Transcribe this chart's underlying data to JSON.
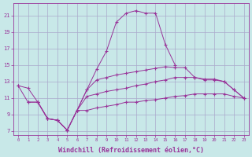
{
  "background_color": "#c8e8e8",
  "grid_color": "#aaaacc",
  "line_color": "#993399",
  "xlabel": "Windchill (Refroidissement éolien,°C)",
  "xlabel_fontsize": 6,
  "yticks": [
    7,
    9,
    11,
    13,
    15,
    17,
    19,
    21
  ],
  "xticks": [
    0,
    1,
    2,
    3,
    4,
    5,
    6,
    7,
    8,
    9,
    10,
    11,
    12,
    13,
    14,
    15,
    16,
    17,
    18,
    19,
    20,
    21,
    22,
    23
  ],
  "xlim": [
    -0.5,
    23.5
  ],
  "ylim": [
    6.5,
    22.5
  ],
  "line1_x": [
    0,
    1,
    2,
    3,
    4,
    5,
    6,
    7,
    8,
    9,
    10,
    11,
    12,
    13,
    14,
    15,
    16
  ],
  "line1_y": [
    12.5,
    12.2,
    10.5,
    8.5,
    8.3,
    7.1,
    9.5,
    12.0,
    14.5,
    16.7,
    20.2,
    21.3,
    21.6,
    21.3,
    21.3,
    17.5,
    15.0
  ],
  "line2_x": [
    1,
    2,
    3,
    4,
    5,
    6,
    7,
    8,
    9,
    10,
    11,
    12,
    13,
    14,
    15,
    16,
    17,
    18,
    19,
    20,
    21,
    22,
    23
  ],
  "line2_y": [
    10.5,
    10.5,
    8.5,
    8.3,
    7.1,
    9.5,
    12.0,
    13.2,
    13.5,
    13.8,
    14.0,
    14.2,
    14.4,
    14.6,
    14.8,
    14.7,
    14.7,
    13.5,
    13.2,
    13.2,
    13.0,
    12.0,
    11.0
  ],
  "line3_x": [
    0,
    1,
    2,
    3,
    4,
    5,
    6,
    7,
    8,
    9,
    10,
    11,
    12,
    13,
    14,
    15,
    16,
    17,
    18,
    19,
    20,
    21,
    22,
    23
  ],
  "line3_y": [
    12.5,
    10.5,
    10.5,
    8.5,
    8.3,
    7.1,
    9.5,
    11.2,
    11.5,
    11.8,
    12.0,
    12.2,
    12.5,
    12.7,
    13.0,
    13.2,
    13.5,
    13.5,
    13.5,
    13.3,
    13.3,
    13.0,
    12.0,
    11.0
  ],
  "line4_x": [
    2,
    3,
    4,
    5,
    6,
    7,
    8,
    9,
    10,
    11,
    12,
    13,
    14,
    15,
    16,
    17,
    18,
    19,
    20,
    21,
    22,
    23
  ],
  "line4_y": [
    10.5,
    8.5,
    8.3,
    7.1,
    9.5,
    9.5,
    9.8,
    10.0,
    10.2,
    10.5,
    10.5,
    10.7,
    10.8,
    11.0,
    11.2,
    11.3,
    11.5,
    11.5,
    11.5,
    11.5,
    11.2,
    11.0
  ]
}
